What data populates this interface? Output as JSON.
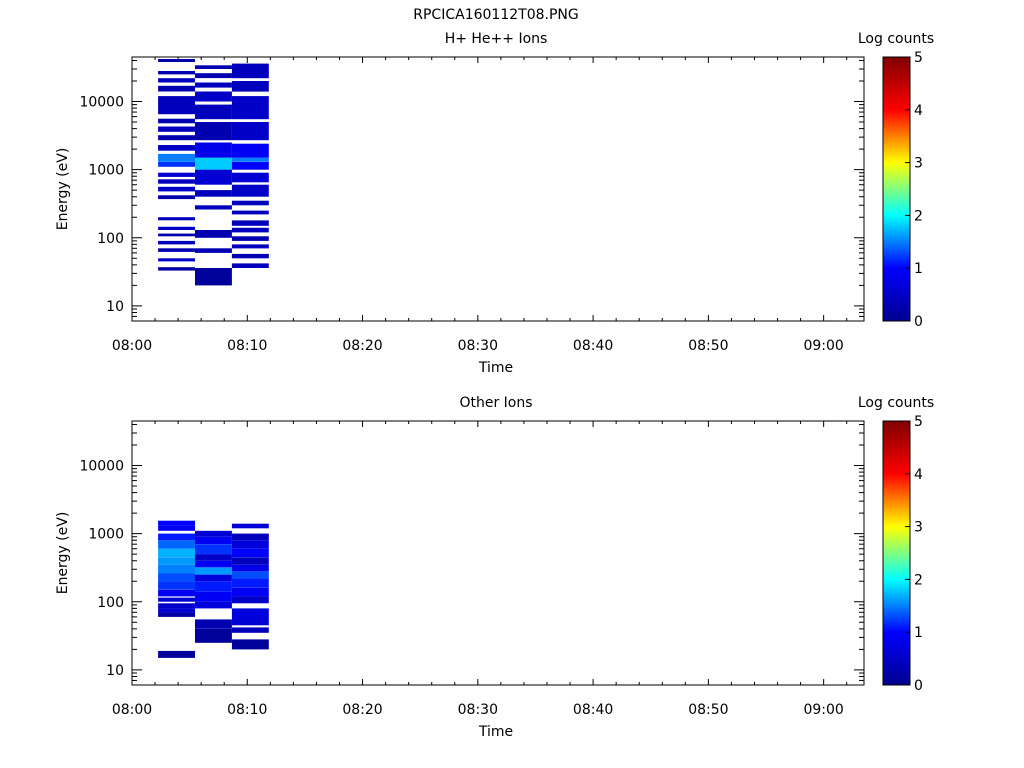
{
  "figure_title": "RPCICA160112T08.PNG",
  "chart_data": [
    {
      "type": "heatmap",
      "title": "H+ He++ Ions",
      "xlabel": "Time",
      "ylabel": "Energy (eV)",
      "x_ticks": [
        "08:00",
        "08:10",
        "08:20",
        "08:30",
        "08:40",
        "08:50",
        "09:00"
      ],
      "y_ticks": [
        "10",
        "100",
        "1000",
        "10000"
      ],
      "y_scale": "log",
      "ylim": [
        6,
        45000
      ],
      "colorbar_label": "Log counts",
      "colorbar_ticks": [
        "0",
        "1",
        "2",
        "3",
        "4",
        "5"
      ],
      "colormap": [
        "#00008f",
        "#0000ff",
        "#00ffff",
        "#ffff00",
        "#ff0000",
        "#800000"
      ],
      "columns": [
        {
          "t_start": "08:02:16",
          "t_end": "08:05:28",
          "bands": [
            {
              "e_low": 33,
              "e_high": 37,
              "v": 0.2
            },
            {
              "e_low": 45,
              "e_high": 50,
              "v": 0.5
            },
            {
              "e_low": 62,
              "e_high": 70,
              "v": 0.3
            },
            {
              "e_low": 80,
              "e_high": 90,
              "v": 0.4
            },
            {
              "e_low": 105,
              "e_high": 115,
              "v": 0.3
            },
            {
              "e_low": 130,
              "e_high": 145,
              "v": 0.5
            },
            {
              "e_low": 180,
              "e_high": 200,
              "v": 0.4
            },
            {
              "e_low": 370,
              "e_high": 420,
              "v": 0.3
            },
            {
              "e_low": 480,
              "e_high": 560,
              "v": 0.5
            },
            {
              "e_low": 620,
              "e_high": 720,
              "v": 0.4
            },
            {
              "e_low": 780,
              "e_high": 900,
              "v": 0.6
            },
            {
              "e_low": 1100,
              "e_high": 1300,
              "v": 1.2
            },
            {
              "e_low": 1300,
              "e_high": 1700,
              "v": 1.5
            },
            {
              "e_low": 1900,
              "e_high": 2300,
              "v": 0.5
            },
            {
              "e_low": 2700,
              "e_high": 3200,
              "v": 0.3
            },
            {
              "e_low": 3600,
              "e_high": 4300,
              "v": 0.4
            },
            {
              "e_low": 4800,
              "e_high": 5600,
              "v": 0.3
            },
            {
              "e_low": 6500,
              "e_high": 12000,
              "v": 0.4
            },
            {
              "e_low": 14000,
              "e_high": 17000,
              "v": 0.3
            },
            {
              "e_low": 19000,
              "e_high": 22000,
              "v": 0.4
            },
            {
              "e_low": 25000,
              "e_high": 28000,
              "v": 0.3
            },
            {
              "e_low": 38000,
              "e_high": 42000,
              "v": 0.3
            }
          ]
        },
        {
          "t_start": "08:05:28",
          "t_end": "08:08:40",
          "bands": [
            {
              "e_low": 20,
              "e_high": 36,
              "v": 0.1
            },
            {
              "e_low": 60,
              "e_high": 70,
              "v": 0.3
            },
            {
              "e_low": 100,
              "e_high": 130,
              "v": 0.3
            },
            {
              "e_low": 260,
              "e_high": 300,
              "v": 0.4
            },
            {
              "e_low": 400,
              "e_high": 500,
              "v": 0.4
            },
            {
              "e_low": 600,
              "e_high": 1000,
              "v": 0.6
            },
            {
              "e_low": 1000,
              "e_high": 1500,
              "v": 1.8
            },
            {
              "e_low": 1500,
              "e_high": 2500,
              "v": 0.8
            },
            {
              "e_low": 2700,
              "e_high": 5000,
              "v": 0.3
            },
            {
              "e_low": 5500,
              "e_high": 9000,
              "v": 0.4
            },
            {
              "e_low": 10000,
              "e_high": 14000,
              "v": 0.5
            },
            {
              "e_low": 16000,
              "e_high": 19000,
              "v": 0.4
            },
            {
              "e_low": 22000,
              "e_high": 26000,
              "v": 0.3
            },
            {
              "e_low": 30000,
              "e_high": 34000,
              "v": 0.3
            }
          ]
        },
        {
          "t_start": "08:08:40",
          "t_end": "08:11:52",
          "bands": [
            {
              "e_low": 36,
              "e_high": 42,
              "v": 0.4
            },
            {
              "e_low": 50,
              "e_high": 58,
              "v": 0.3
            },
            {
              "e_low": 70,
              "e_high": 80,
              "v": 0.4
            },
            {
              "e_low": 90,
              "e_high": 105,
              "v": 0.3
            },
            {
              "e_low": 120,
              "e_high": 140,
              "v": 0.4
            },
            {
              "e_low": 150,
              "e_high": 180,
              "v": 0.4
            },
            {
              "e_low": 220,
              "e_high": 250,
              "v": 0.4
            },
            {
              "e_low": 300,
              "e_high": 350,
              "v": 0.4
            },
            {
              "e_low": 400,
              "e_high": 600,
              "v": 0.5
            },
            {
              "e_low": 650,
              "e_high": 900,
              "v": 0.6
            },
            {
              "e_low": 1000,
              "e_high": 1300,
              "v": 1.0
            },
            {
              "e_low": 1300,
              "e_high": 1500,
              "v": 1.5
            },
            {
              "e_low": 1500,
              "e_high": 2400,
              "v": 0.9
            },
            {
              "e_low": 2700,
              "e_high": 5000,
              "v": 0.5
            },
            {
              "e_low": 5500,
              "e_high": 12000,
              "v": 0.5
            },
            {
              "e_low": 14000,
              "e_high": 20000,
              "v": 0.4
            },
            {
              "e_low": 22000,
              "e_high": 36000,
              "v": 0.4
            }
          ]
        }
      ]
    },
    {
      "type": "heatmap",
      "title": "Other Ions",
      "xlabel": "Time",
      "ylabel": "Energy (eV)",
      "x_ticks": [
        "08:00",
        "08:10",
        "08:20",
        "08:30",
        "08:40",
        "08:50",
        "09:00"
      ],
      "y_ticks": [
        "10",
        "100",
        "1000",
        "10000"
      ],
      "y_scale": "log",
      "ylim": [
        6,
        45000
      ],
      "colorbar_label": "Log counts",
      "colorbar_ticks": [
        "0",
        "1",
        "2",
        "3",
        "4",
        "5"
      ],
      "colormap": [
        "#00008f",
        "#0000ff",
        "#00ffff",
        "#ffff00",
        "#ff0000",
        "#800000"
      ],
      "columns": [
        {
          "t_start": "08:02:16",
          "t_end": "08:05:28",
          "bands": [
            {
              "e_low": 15,
              "e_high": 19,
              "v": 0.1
            },
            {
              "e_low": 60,
              "e_high": 70,
              "v": 0.2
            },
            {
              "e_low": 70,
              "e_high": 80,
              "v": 0.6
            },
            {
              "e_low": 80,
              "e_high": 95,
              "v": 0.5
            },
            {
              "e_low": 100,
              "e_high": 115,
              "v": 0.6
            },
            {
              "e_low": 120,
              "e_high": 150,
              "v": 0.9
            },
            {
              "e_low": 150,
              "e_high": 200,
              "v": 1.2
            },
            {
              "e_low": 200,
              "e_high": 260,
              "v": 1.3
            },
            {
              "e_low": 260,
              "e_high": 350,
              "v": 1.5
            },
            {
              "e_low": 350,
              "e_high": 450,
              "v": 1.6
            },
            {
              "e_low": 450,
              "e_high": 600,
              "v": 1.7
            },
            {
              "e_low": 600,
              "e_high": 800,
              "v": 1.4
            },
            {
              "e_low": 800,
              "e_high": 1000,
              "v": 1.1
            },
            {
              "e_low": 1100,
              "e_high": 1300,
              "v": 0.9
            },
            {
              "e_low": 1300,
              "e_high": 1550,
              "v": 1.0
            }
          ]
        },
        {
          "t_start": "08:05:28",
          "t_end": "08:08:40",
          "bands": [
            {
              "e_low": 25,
              "e_high": 40,
              "v": 0.1
            },
            {
              "e_low": 40,
              "e_high": 55,
              "v": 0.3
            },
            {
              "e_low": 80,
              "e_high": 100,
              "v": 0.7
            },
            {
              "e_low": 100,
              "e_high": 140,
              "v": 0.9
            },
            {
              "e_low": 140,
              "e_high": 200,
              "v": 1.1
            },
            {
              "e_low": 200,
              "e_high": 250,
              "v": 0.7
            },
            {
              "e_low": 250,
              "e_high": 320,
              "v": 1.6
            },
            {
              "e_low": 320,
              "e_high": 400,
              "v": 0.9
            },
            {
              "e_low": 400,
              "e_high": 500,
              "v": 0.5
            },
            {
              "e_low": 500,
              "e_high": 700,
              "v": 1.2
            },
            {
              "e_low": 700,
              "e_high": 900,
              "v": 0.9
            },
            {
              "e_low": 900,
              "e_high": 1100,
              "v": 0.6
            }
          ]
        },
        {
          "t_start": "08:08:40",
          "t_end": "08:11:52",
          "bands": [
            {
              "e_low": 20,
              "e_high": 28,
              "v": 0.1
            },
            {
              "e_low": 35,
              "e_high": 42,
              "v": 0.4
            },
            {
              "e_low": 45,
              "e_high": 55,
              "v": 0.6
            },
            {
              "e_low": 55,
              "e_high": 80,
              "v": 0.7
            },
            {
              "e_low": 95,
              "e_high": 120,
              "v": 0.5
            },
            {
              "e_low": 120,
              "e_high": 160,
              "v": 0.9
            },
            {
              "e_low": 160,
              "e_high": 220,
              "v": 1.1
            },
            {
              "e_low": 220,
              "e_high": 280,
              "v": 1.3
            },
            {
              "e_low": 280,
              "e_high": 350,
              "v": 0.8
            },
            {
              "e_low": 350,
              "e_high": 450,
              "v": 0.4
            },
            {
              "e_low": 450,
              "e_high": 600,
              "v": 1.0
            },
            {
              "e_low": 600,
              "e_high": 800,
              "v": 0.7
            },
            {
              "e_low": 800,
              "e_high": 1000,
              "v": 0.4
            },
            {
              "e_low": 1200,
              "e_high": 1400,
              "v": 0.6
            }
          ]
        }
      ]
    }
  ]
}
